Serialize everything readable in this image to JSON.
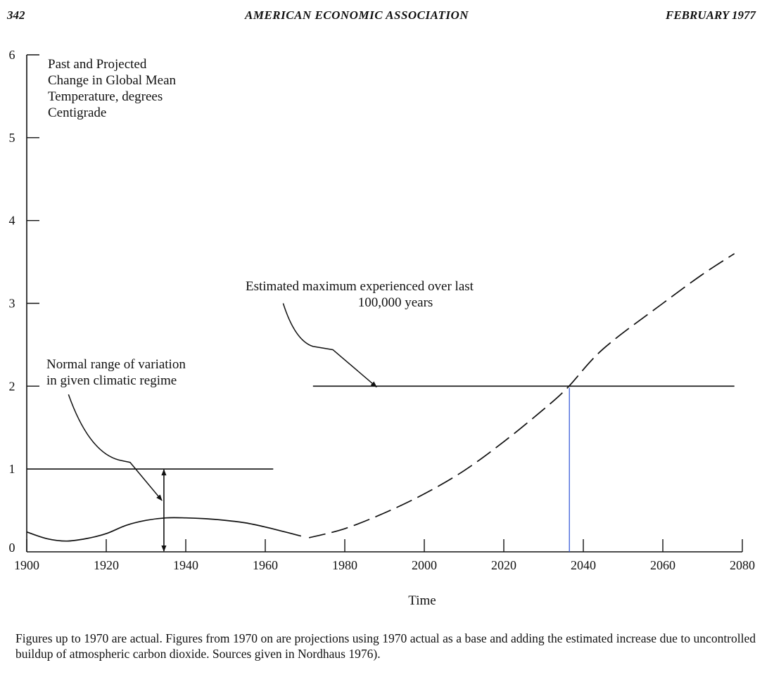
{
  "header": {
    "page_number": "342",
    "journal": "AMERICAN ECONOMIC ASSOCIATION",
    "date": "FEBRUARY 1977"
  },
  "chart_data": {
    "type": "line",
    "ylabel_lines": [
      "Past and Projected",
      "Change in Global Mean",
      "Temperature, degrees",
      "Centigrade"
    ],
    "xlabel": "Time",
    "xlim": [
      1900,
      2080
    ],
    "ylim": [
      0,
      6
    ],
    "x_ticks": [
      1900,
      1920,
      1940,
      1960,
      1980,
      2000,
      2020,
      2040,
      2060,
      2080
    ],
    "y_ticks": [
      0,
      1,
      2,
      3,
      4,
      5,
      6
    ],
    "grid": false,
    "series": [
      {
        "style": "solid",
        "points": [
          [
            1900,
            0.24
          ],
          [
            1905,
            0.16
          ],
          [
            1910,
            0.13
          ],
          [
            1915,
            0.16
          ],
          [
            1920,
            0.22
          ],
          [
            1925,
            0.32
          ],
          [
            1930,
            0.38
          ],
          [
            1935,
            0.41
          ],
          [
            1940,
            0.41
          ],
          [
            1945,
            0.4
          ],
          [
            1950,
            0.38
          ],
          [
            1955,
            0.35
          ],
          [
            1960,
            0.3
          ],
          [
            1965,
            0.24
          ],
          [
            1969,
            0.19
          ]
        ]
      },
      {
        "style": "dashed",
        "points": [
          [
            1971,
            0.17
          ],
          [
            1980,
            0.28
          ],
          [
            1990,
            0.47
          ],
          [
            2000,
            0.7
          ],
          [
            2010,
            0.98
          ],
          [
            2020,
            1.33
          ],
          [
            2030,
            1.72
          ],
          [
            2036,
            1.98
          ],
          [
            2045,
            2.45
          ],
          [
            2060,
            3.0
          ],
          [
            2070,
            3.35
          ],
          [
            2078,
            3.6
          ]
        ]
      }
    ],
    "reference_lines": [
      {
        "y": 1,
        "x_start": 1900,
        "x_end": 1962
      },
      {
        "y": 2,
        "x_start": 1972,
        "x_end": 2078
      }
    ],
    "vertical_marker": {
      "x": 2036.5,
      "y_from": 0,
      "y_to": 1.98,
      "color": "#3b5fd9"
    },
    "range_arrow": {
      "x": 1934.5,
      "y_from": 0,
      "y_to": 1
    },
    "annotations": [
      {
        "lines": [
          "Normal range of variation",
          "in given climatic regime"
        ],
        "leader": [
          [
            1910.5,
            1.9
          ],
          [
            1924,
            1.1
          ],
          [
            1926,
            1.08
          ],
          [
            1934,
            0.62
          ]
        ]
      },
      {
        "lines": [
          "Estimated maximum experienced over last",
          "100,000 years"
        ],
        "leader": [
          [
            1964.5,
            3.0
          ],
          [
            1972,
            2.48
          ],
          [
            1977,
            2.44
          ],
          [
            1988,
            1.99
          ]
        ]
      }
    ]
  },
  "caption": "Figures up to 1970 are actual. Figures from 1970 on are projections using 1970 actual as a base and adding the estimated increase due to uncontrolled buildup of atmospheric carbon dioxide. Sources given in Nordhaus 1976)."
}
